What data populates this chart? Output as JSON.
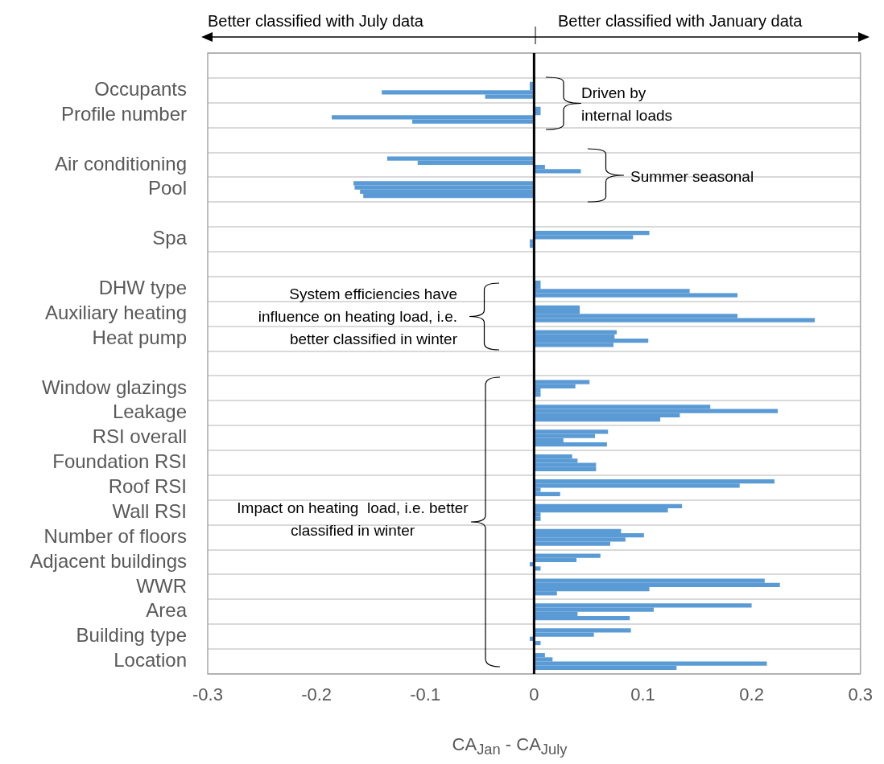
{
  "chart_data": {
    "type": "bar",
    "orientation": "horizontal",
    "categories": [
      null,
      "Occupants",
      "Profile number",
      null,
      "Air conditioning",
      "Pool",
      null,
      "Spa",
      null,
      "DHW type",
      "Auxiliary heating",
      "Heat pump",
      null,
      "Window glazings",
      "Leakage",
      "RSI overall",
      "Foundation RSI",
      "Roof RSI",
      "Wall RSI",
      "Number of floors",
      "Adjacent buildings",
      "WWR",
      "Area",
      "Building type",
      "Location"
    ],
    "series": [
      {
        "color": "#5b9bd5",
        "values": [
          null,
          -0.004,
          0.006,
          null,
          -0.135,
          -0.166,
          null,
          0.106,
          null,
          0.006,
          0.042,
          0.076,
          null,
          0.051,
          0.162,
          0.068,
          0.035,
          0.221,
          0.136,
          0.08,
          0.061,
          0.212,
          0.2,
          0.089,
          0.01
        ]
      },
      {
        "color": "#5b9bd5",
        "values": [
          null,
          -0.004,
          0.006,
          null,
          -0.107,
          -0.165,
          null,
          0.091,
          null,
          0.006,
          0.042,
          0.074,
          null,
          0.038,
          0.224,
          0.056,
          0.04,
          0.189,
          0.123,
          0.101,
          0.039,
          0.226,
          0.11,
          0.055,
          0.017
        ]
      },
      {
        "color": "#5b9bd5",
        "values": [
          null,
          -0.14,
          -0.186,
          null,
          0.01,
          -0.16,
          null,
          -0.004,
          null,
          0.143,
          0.187,
          0.105,
          null,
          0.006,
          0.134,
          0.027,
          0.057,
          0.006,
          0.006,
          0.084,
          -0.004,
          0.106,
          0.04,
          -0.004,
          0.214
        ]
      },
      {
        "color": "#5b9bd5",
        "values": [
          null,
          -0.045,
          -0.112,
          null,
          0.043,
          -0.157,
          null,
          -0.004,
          null,
          0.187,
          0.258,
          0.073,
          null,
          0.006,
          0.116,
          0.067,
          0.057,
          0.024,
          0.006,
          0.07,
          0.006,
          0.021,
          0.088,
          0.006,
          0.131
        ]
      }
    ],
    "xlim": [
      -0.3,
      0.3
    ],
    "xticks": [
      -0.3,
      -0.2,
      -0.1,
      0,
      0.1,
      0.2,
      0.3
    ],
    "xlabel": "CA$_{Jan}$ - CA$_{July}$",
    "grid": "y",
    "annotations": [
      "Better classified with July data",
      "Better classified with January data",
      "Driven by internal loads",
      "Summer seasonal",
      "System efficiencies have influence on heating load, i.e. better classified in winter",
      "Impact on heating  load, i.e. better classified in winter"
    ]
  }
}
